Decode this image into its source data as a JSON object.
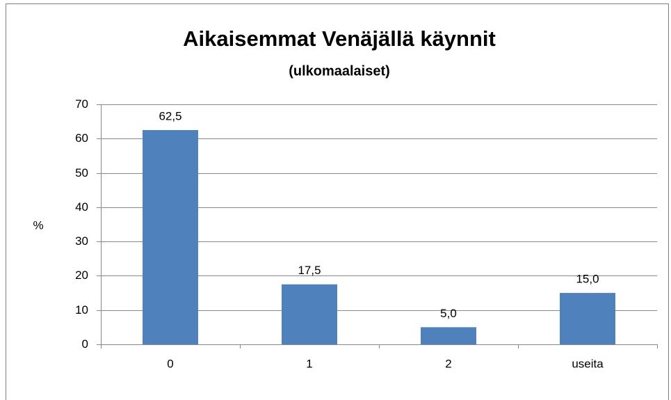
{
  "chart_data": {
    "type": "bar",
    "title": "Aikaisemmat Venäjällä käynnit",
    "subtitle": "(ulkomaalaiset)",
    "y_label": "%",
    "categories": [
      "0",
      "1",
      "2",
      "useita"
    ],
    "values": [
      62.5,
      17.5,
      5,
      15
    ],
    "value_labels": [
      "62,5",
      "17,5",
      "5,0",
      "15,0"
    ],
    "color": "#4f81bd",
    "ylim": [
      0,
      70
    ],
    "yticks": [
      0,
      10,
      20,
      30,
      40,
      50,
      60,
      70
    ],
    "grid": true
  }
}
